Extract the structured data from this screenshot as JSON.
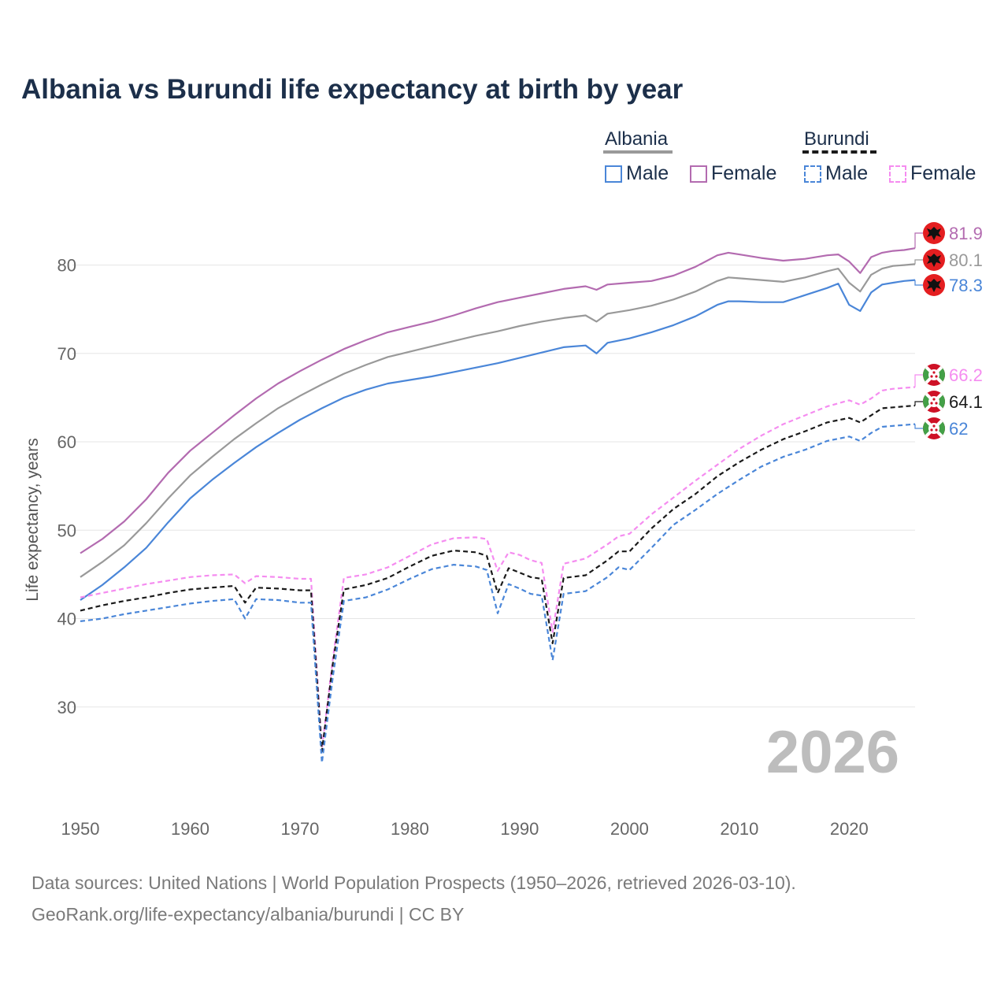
{
  "title": "Albania vs Burundi life expectancy at birth by year",
  "legend": {
    "albania": {
      "label": "Albania",
      "male": "Male",
      "female": "Female"
    },
    "burundi": {
      "label": "Burundi",
      "male": "Male",
      "female": "Female"
    }
  },
  "year_watermark": "2026",
  "footer": {
    "sources": "Data sources: United Nations | World Population Prospects (1950–2026, retrieved 2026-03-10).",
    "credit": "GeoRank.org/life-expectancy/albania/burundi | CC BY"
  },
  "colors": {
    "albania_total": "#999999",
    "albania_male": "#4a86d8",
    "albania_female": "#b36bb0",
    "burundi_total": "#1a1a1a",
    "burundi_male": "#4a86d8",
    "burundi_female": "#f58cf0",
    "title": "#1c2f4a"
  },
  "chart_data": {
    "type": "line",
    "ylabel": "Life expectancy, years",
    "xlabel": "",
    "xlim": [
      1950,
      2026
    ],
    "ylim": [
      20,
      87
    ],
    "x_ticks": [
      1950,
      1960,
      1970,
      1980,
      1990,
      2000,
      2010,
      2020
    ],
    "y_ticks": [
      30,
      40,
      50,
      60,
      70,
      80
    ],
    "end_labels": [
      {
        "series": "albania_female",
        "text": "81.9"
      },
      {
        "series": "albania_total",
        "text": "80.1"
      },
      {
        "series": "albania_male",
        "text": "78.3"
      },
      {
        "series": "burundi_female",
        "text": "66.2"
      },
      {
        "series": "burundi_total",
        "text": "64.1"
      },
      {
        "series": "burundi_male",
        "text": "62"
      }
    ],
    "series": [
      {
        "name": "albania_female",
        "country": "Albania",
        "sex": "Female",
        "dashed": false,
        "points": [
          [
            1950,
            47.4
          ],
          [
            1952,
            49.0
          ],
          [
            1954,
            51.0
          ],
          [
            1956,
            53.5
          ],
          [
            1958,
            56.5
          ],
          [
            1960,
            59.0
          ],
          [
            1962,
            61.0
          ],
          [
            1964,
            63.0
          ],
          [
            1966,
            64.9
          ],
          [
            1968,
            66.6
          ],
          [
            1970,
            68.0
          ],
          [
            1972,
            69.3
          ],
          [
            1974,
            70.5
          ],
          [
            1976,
            71.5
          ],
          [
            1978,
            72.4
          ],
          [
            1980,
            73.0
          ],
          [
            1982,
            73.6
          ],
          [
            1984,
            74.3
          ],
          [
            1986,
            75.1
          ],
          [
            1988,
            75.8
          ],
          [
            1990,
            76.3
          ],
          [
            1992,
            76.8
          ],
          [
            1994,
            77.3
          ],
          [
            1996,
            77.6
          ],
          [
            1997,
            77.2
          ],
          [
            1998,
            77.8
          ],
          [
            2000,
            78.0
          ],
          [
            2002,
            78.2
          ],
          [
            2004,
            78.8
          ],
          [
            2006,
            79.8
          ],
          [
            2008,
            81.1
          ],
          [
            2009,
            81.4
          ],
          [
            2010,
            81.2
          ],
          [
            2012,
            80.8
          ],
          [
            2014,
            80.5
          ],
          [
            2016,
            80.7
          ],
          [
            2018,
            81.1
          ],
          [
            2019,
            81.2
          ],
          [
            2020,
            80.4
          ],
          [
            2021,
            79.1
          ],
          [
            2022,
            80.9
          ],
          [
            2023,
            81.4
          ],
          [
            2024,
            81.6
          ],
          [
            2025,
            81.7
          ],
          [
            2026,
            81.9
          ]
        ]
      },
      {
        "name": "albania_total",
        "country": "Albania",
        "sex": "Total",
        "dashed": false,
        "points": [
          [
            1950,
            44.7
          ],
          [
            1952,
            46.4
          ],
          [
            1954,
            48.3
          ],
          [
            1956,
            50.8
          ],
          [
            1958,
            53.6
          ],
          [
            1960,
            56.2
          ],
          [
            1962,
            58.3
          ],
          [
            1964,
            60.3
          ],
          [
            1966,
            62.1
          ],
          [
            1968,
            63.8
          ],
          [
            1970,
            65.2
          ],
          [
            1972,
            66.5
          ],
          [
            1974,
            67.7
          ],
          [
            1976,
            68.7
          ],
          [
            1978,
            69.6
          ],
          [
            1980,
            70.2
          ],
          [
            1982,
            70.8
          ],
          [
            1984,
            71.4
          ],
          [
            1986,
            72.0
          ],
          [
            1988,
            72.5
          ],
          [
            1990,
            73.1
          ],
          [
            1992,
            73.6
          ],
          [
            1994,
            74.0
          ],
          [
            1996,
            74.3
          ],
          [
            1997,
            73.6
          ],
          [
            1998,
            74.5
          ],
          [
            2000,
            74.9
          ],
          [
            2002,
            75.4
          ],
          [
            2004,
            76.1
          ],
          [
            2006,
            77.0
          ],
          [
            2008,
            78.2
          ],
          [
            2009,
            78.6
          ],
          [
            2010,
            78.5
          ],
          [
            2012,
            78.3
          ],
          [
            2014,
            78.1
          ],
          [
            2016,
            78.6
          ],
          [
            2018,
            79.3
          ],
          [
            2019,
            79.6
          ],
          [
            2020,
            78.0
          ],
          [
            2021,
            77.0
          ],
          [
            2022,
            78.9
          ],
          [
            2023,
            79.6
          ],
          [
            2024,
            79.9
          ],
          [
            2025,
            80.0
          ],
          [
            2026,
            80.1
          ]
        ]
      },
      {
        "name": "albania_male",
        "country": "Albania",
        "sex": "Male",
        "dashed": false,
        "points": [
          [
            1950,
            42.1
          ],
          [
            1952,
            43.8
          ],
          [
            1954,
            45.8
          ],
          [
            1956,
            48.0
          ],
          [
            1958,
            50.9
          ],
          [
            1960,
            53.6
          ],
          [
            1962,
            55.7
          ],
          [
            1964,
            57.6
          ],
          [
            1966,
            59.4
          ],
          [
            1968,
            61.0
          ],
          [
            1970,
            62.5
          ],
          [
            1972,
            63.8
          ],
          [
            1974,
            65.0
          ],
          [
            1976,
            65.9
          ],
          [
            1978,
            66.6
          ],
          [
            1980,
            67.0
          ],
          [
            1982,
            67.4
          ],
          [
            1984,
            67.9
          ],
          [
            1986,
            68.4
          ],
          [
            1988,
            68.9
          ],
          [
            1990,
            69.5
          ],
          [
            1992,
            70.1
          ],
          [
            1994,
            70.7
          ],
          [
            1996,
            70.9
          ],
          [
            1997,
            70.0
          ],
          [
            1998,
            71.2
          ],
          [
            2000,
            71.7
          ],
          [
            2002,
            72.4
          ],
          [
            2004,
            73.2
          ],
          [
            2006,
            74.2
          ],
          [
            2008,
            75.5
          ],
          [
            2009,
            75.9
          ],
          [
            2010,
            75.9
          ],
          [
            2012,
            75.8
          ],
          [
            2014,
            75.8
          ],
          [
            2016,
            76.6
          ],
          [
            2018,
            77.4
          ],
          [
            2019,
            77.9
          ],
          [
            2020,
            75.5
          ],
          [
            2021,
            74.8
          ],
          [
            2022,
            76.9
          ],
          [
            2023,
            77.8
          ],
          [
            2024,
            78.0
          ],
          [
            2025,
            78.2
          ],
          [
            2026,
            78.3
          ]
        ]
      },
      {
        "name": "burundi_female",
        "country": "Burundi",
        "sex": "Female",
        "dashed": true,
        "points": [
          [
            1950,
            42.4
          ],
          [
            1952,
            42.9
          ],
          [
            1954,
            43.4
          ],
          [
            1956,
            43.9
          ],
          [
            1958,
            44.3
          ],
          [
            1960,
            44.7
          ],
          [
            1962,
            44.9
          ],
          [
            1964,
            45.0
          ],
          [
            1965,
            44.0
          ],
          [
            1966,
            44.8
          ],
          [
            1968,
            44.7
          ],
          [
            1970,
            44.5
          ],
          [
            1971,
            44.5
          ],
          [
            1972,
            25.3
          ],
          [
            1973,
            35.5
          ],
          [
            1974,
            44.6
          ],
          [
            1976,
            45.0
          ],
          [
            1978,
            45.8
          ],
          [
            1980,
            47.1
          ],
          [
            1982,
            48.4
          ],
          [
            1984,
            49.1
          ],
          [
            1986,
            49.2
          ],
          [
            1987,
            49.0
          ],
          [
            1988,
            45.4
          ],
          [
            1989,
            47.5
          ],
          [
            1990,
            47.2
          ],
          [
            1991,
            46.6
          ],
          [
            1992,
            46.3
          ],
          [
            1993,
            38.5
          ],
          [
            1994,
            46.2
          ],
          [
            1996,
            46.8
          ],
          [
            1998,
            48.4
          ],
          [
            1999,
            49.3
          ],
          [
            2000,
            49.6
          ],
          [
            2002,
            51.8
          ],
          [
            2004,
            53.7
          ],
          [
            2006,
            55.6
          ],
          [
            2008,
            57.4
          ],
          [
            2010,
            59.2
          ],
          [
            2012,
            60.7
          ],
          [
            2014,
            62.0
          ],
          [
            2016,
            63.0
          ],
          [
            2018,
            64.0
          ],
          [
            2020,
            64.7
          ],
          [
            2021,
            64.2
          ],
          [
            2022,
            64.9
          ],
          [
            2023,
            65.8
          ],
          [
            2024,
            66.0
          ],
          [
            2025,
            66.1
          ],
          [
            2026,
            66.2
          ]
        ]
      },
      {
        "name": "burundi_total",
        "country": "Burundi",
        "sex": "Total",
        "dashed": true,
        "points": [
          [
            1950,
            40.9
          ],
          [
            1952,
            41.5
          ],
          [
            1954,
            42.0
          ],
          [
            1956,
            42.4
          ],
          [
            1958,
            42.9
          ],
          [
            1960,
            43.3
          ],
          [
            1962,
            43.5
          ],
          [
            1964,
            43.7
          ],
          [
            1965,
            41.8
          ],
          [
            1966,
            43.5
          ],
          [
            1968,
            43.4
          ],
          [
            1970,
            43.2
          ],
          [
            1971,
            43.2
          ],
          [
            1972,
            25.0
          ],
          [
            1973,
            35.0
          ],
          [
            1974,
            43.3
          ],
          [
            1976,
            43.8
          ],
          [
            1978,
            44.6
          ],
          [
            1980,
            45.9
          ],
          [
            1982,
            47.1
          ],
          [
            1984,
            47.7
          ],
          [
            1986,
            47.5
          ],
          [
            1987,
            47.1
          ],
          [
            1988,
            42.9
          ],
          [
            1989,
            45.7
          ],
          [
            1990,
            45.2
          ],
          [
            1991,
            44.7
          ],
          [
            1992,
            44.5
          ],
          [
            1993,
            37.2
          ],
          [
            1994,
            44.6
          ],
          [
            1996,
            44.9
          ],
          [
            1998,
            46.6
          ],
          [
            1999,
            47.6
          ],
          [
            2000,
            47.6
          ],
          [
            2002,
            50.2
          ],
          [
            2004,
            52.4
          ],
          [
            2006,
            54.1
          ],
          [
            2008,
            56.1
          ],
          [
            2010,
            57.7
          ],
          [
            2012,
            59.1
          ],
          [
            2014,
            60.3
          ],
          [
            2016,
            61.2
          ],
          [
            2018,
            62.2
          ],
          [
            2020,
            62.7
          ],
          [
            2021,
            62.2
          ],
          [
            2022,
            63.0
          ],
          [
            2023,
            63.8
          ],
          [
            2024,
            63.9
          ],
          [
            2025,
            64.0
          ],
          [
            2026,
            64.1
          ]
        ]
      },
      {
        "name": "burundi_male",
        "country": "Burundi",
        "sex": "Male",
        "dashed": true,
        "points": [
          [
            1950,
            39.7
          ],
          [
            1952,
            40.0
          ],
          [
            1954,
            40.5
          ],
          [
            1956,
            40.9
          ],
          [
            1958,
            41.3
          ],
          [
            1960,
            41.7
          ],
          [
            1962,
            42.0
          ],
          [
            1964,
            42.2
          ],
          [
            1965,
            40.0
          ],
          [
            1966,
            42.2
          ],
          [
            1968,
            42.1
          ],
          [
            1970,
            41.8
          ],
          [
            1971,
            41.8
          ],
          [
            1972,
            23.7
          ],
          [
            1973,
            33.5
          ],
          [
            1974,
            42.0
          ],
          [
            1976,
            42.4
          ],
          [
            1978,
            43.3
          ],
          [
            1980,
            44.5
          ],
          [
            1982,
            45.6
          ],
          [
            1984,
            46.1
          ],
          [
            1986,
            45.9
          ],
          [
            1987,
            45.5
          ],
          [
            1988,
            40.6
          ],
          [
            1989,
            43.9
          ],
          [
            1990,
            43.4
          ],
          [
            1991,
            42.8
          ],
          [
            1992,
            42.6
          ],
          [
            1993,
            35.3
          ],
          [
            1994,
            42.8
          ],
          [
            1996,
            43.1
          ],
          [
            1998,
            44.7
          ],
          [
            1999,
            45.8
          ],
          [
            2000,
            45.5
          ],
          [
            2002,
            48.0
          ],
          [
            2004,
            50.6
          ],
          [
            2006,
            52.3
          ],
          [
            2008,
            54.1
          ],
          [
            2010,
            55.7
          ],
          [
            2012,
            57.2
          ],
          [
            2014,
            58.3
          ],
          [
            2016,
            59.1
          ],
          [
            2018,
            60.1
          ],
          [
            2020,
            60.6
          ],
          [
            2021,
            60.1
          ],
          [
            2022,
            61.0
          ],
          [
            2023,
            61.7
          ],
          [
            2024,
            61.8
          ],
          [
            2025,
            61.9
          ],
          [
            2026,
            62.0
          ]
        ]
      }
    ]
  }
}
